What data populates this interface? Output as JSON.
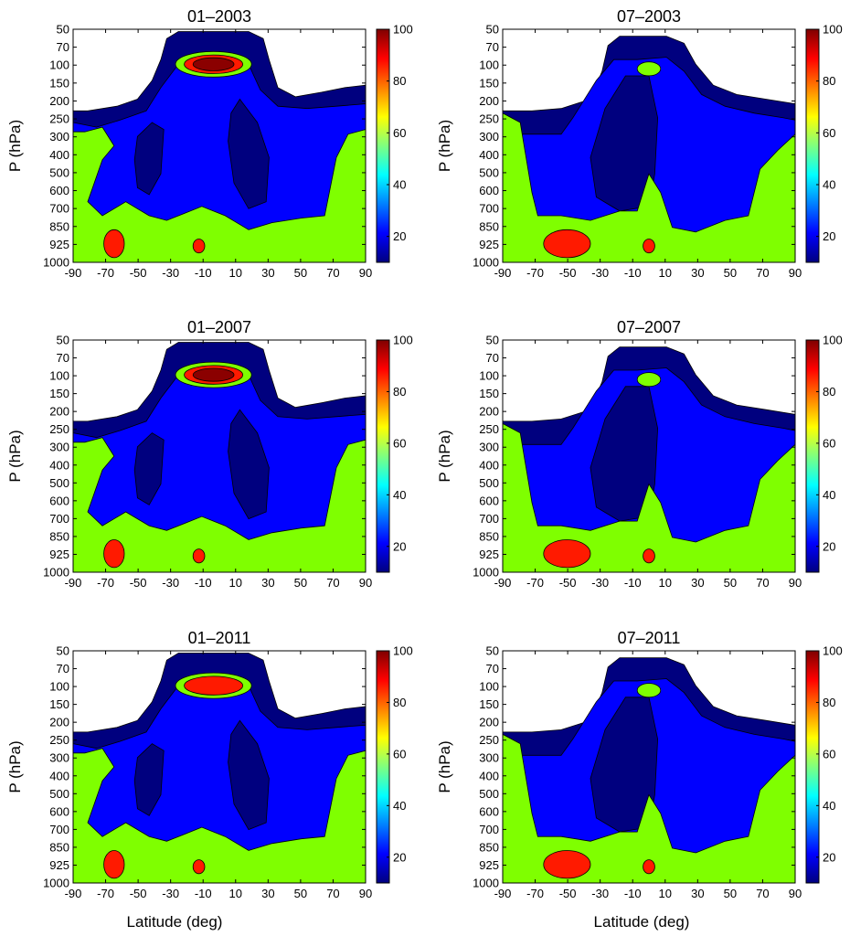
{
  "chart_data": {
    "type": "heatmap",
    "panel_grid": "3 rows x 2 columns",
    "xlabel": "Latitude (deg)",
    "ylabel": "P (hPa)",
    "x_ticks": [
      "-90",
      "-70",
      "-50",
      "-30",
      "-10",
      "10",
      "30",
      "50",
      "70",
      "90"
    ],
    "y_ticks": [
      "50",
      "70",
      "100",
      "150",
      "200",
      "250",
      "300",
      "400",
      "500",
      "600",
      "700",
      "850",
      "925",
      "1000"
    ],
    "y_axis": "pressure levels, equally spaced, 50 at top, 1000 at bottom",
    "xlim": [
      -90,
      90
    ],
    "colorbar": {
      "range": [
        10,
        100
      ],
      "ticks": [
        "20",
        "40",
        "60",
        "80",
        "100"
      ],
      "colormap": "jet",
      "colors": [
        "#00007f",
        "#0000ff",
        "#00ffff",
        "#7fff7f",
        "#ffff00",
        "#ff0000",
        "#7f0000"
      ]
    },
    "contour_levels": [
      10,
      30,
      60,
      80,
      90,
      100
    ],
    "level_colors": {
      "10-30": "#00007f",
      "30-60": "#0000ff",
      "60-80": "#7fff00",
      "80-90": "#ff1a00",
      "90-100": "#8b0000"
    },
    "panels": [
      {
        "title": "01–2003",
        "month": "01",
        "year": 2003,
        "top_plev": 50,
        "tropical_peak_max": 100,
        "sh_low_level_max": 90
      },
      {
        "title": "07–2003",
        "month": "07",
        "year": 2003,
        "top_plev": 60,
        "tropical_peak_max": 70,
        "sh_low_level_max": 90
      },
      {
        "title": "01–2007",
        "month": "01",
        "year": 2007,
        "top_plev": 50,
        "tropical_peak_max": 100,
        "sh_low_level_max": 90
      },
      {
        "title": "07–2007",
        "month": "07",
        "year": 2007,
        "top_plev": 60,
        "tropical_peak_max": 70,
        "sh_low_level_max": 90
      },
      {
        "title": "01–2011",
        "month": "01",
        "year": 2011,
        "top_plev": 50,
        "tropical_peak_max": 90,
        "sh_low_level_max": 90
      },
      {
        "title": "07–2011",
        "month": "07",
        "year": 2011,
        "top_plev": 60,
        "tropical_peak_max": 70,
        "sh_low_level_max": 90
      }
    ]
  }
}
